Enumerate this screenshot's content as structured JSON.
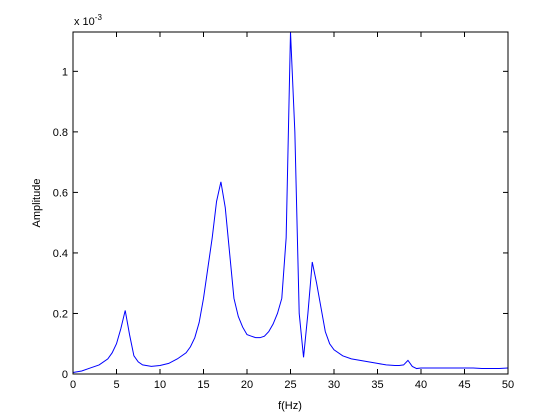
{
  "chart_data": {
    "type": "line",
    "title": "",
    "xlabel": "f(Hz)",
    "ylabel": "Amplitude",
    "xlim": [
      0,
      50
    ],
    "ylim": [
      0,
      1.13
    ],
    "y_exponent_label": "x 10",
    "y_exponent_power": "-3",
    "grid": false,
    "legend": "none",
    "x_ticks": [
      0,
      5,
      10,
      15,
      20,
      25,
      30,
      35,
      40,
      45,
      50
    ],
    "x_tick_labels": [
      "0",
      "5",
      "10",
      "15",
      "20",
      "25",
      "30",
      "35",
      "40",
      "45",
      "50"
    ],
    "y_ticks": [
      0,
      0.2,
      0.4,
      0.6,
      0.8,
      1
    ],
    "y_tick_labels": [
      "0",
      "0.2",
      "0.4",
      "0.6",
      "0.8",
      "1"
    ],
    "series": [
      {
        "color": "#0000ff",
        "x": [
          0,
          1,
          2,
          3,
          4,
          4.5,
          5,
          5.5,
          6,
          6.5,
          7,
          7.5,
          8,
          9,
          10,
          11,
          12,
          13,
          13.5,
          14,
          14.5,
          15,
          15.5,
          16,
          16.5,
          17,
          17.5,
          18,
          18.5,
          19,
          19.5,
          20,
          20.5,
          21,
          21.5,
          22,
          22.5,
          23,
          23.5,
          24,
          24.5,
          25,
          25.5,
          26,
          26.5,
          27,
          27.5,
          28,
          28.5,
          29,
          29.5,
          30,
          31,
          32,
          33,
          34,
          35,
          36,
          37,
          37.5,
          38,
          38.5,
          39,
          39.5,
          40,
          41,
          42,
          43,
          44,
          45,
          46,
          47,
          48,
          49,
          50
        ],
        "y": [
          0.005,
          0.01,
          0.02,
          0.03,
          0.05,
          0.07,
          0.1,
          0.15,
          0.21,
          0.13,
          0.06,
          0.04,
          0.03,
          0.025,
          0.028,
          0.035,
          0.05,
          0.07,
          0.09,
          0.12,
          0.17,
          0.25,
          0.35,
          0.45,
          0.57,
          0.635,
          0.55,
          0.4,
          0.25,
          0.19,
          0.155,
          0.13,
          0.125,
          0.12,
          0.12,
          0.125,
          0.14,
          0.165,
          0.2,
          0.25,
          0.45,
          1.13,
          0.8,
          0.2,
          0.055,
          0.2,
          0.37,
          0.3,
          0.22,
          0.14,
          0.1,
          0.08,
          0.06,
          0.05,
          0.045,
          0.04,
          0.035,
          0.03,
          0.028,
          0.028,
          0.03,
          0.045,
          0.025,
          0.018,
          0.02,
          0.02,
          0.02,
          0.02,
          0.02,
          0.02,
          0.02,
          0.018,
          0.018,
          0.018,
          0.02
        ]
      }
    ]
  }
}
